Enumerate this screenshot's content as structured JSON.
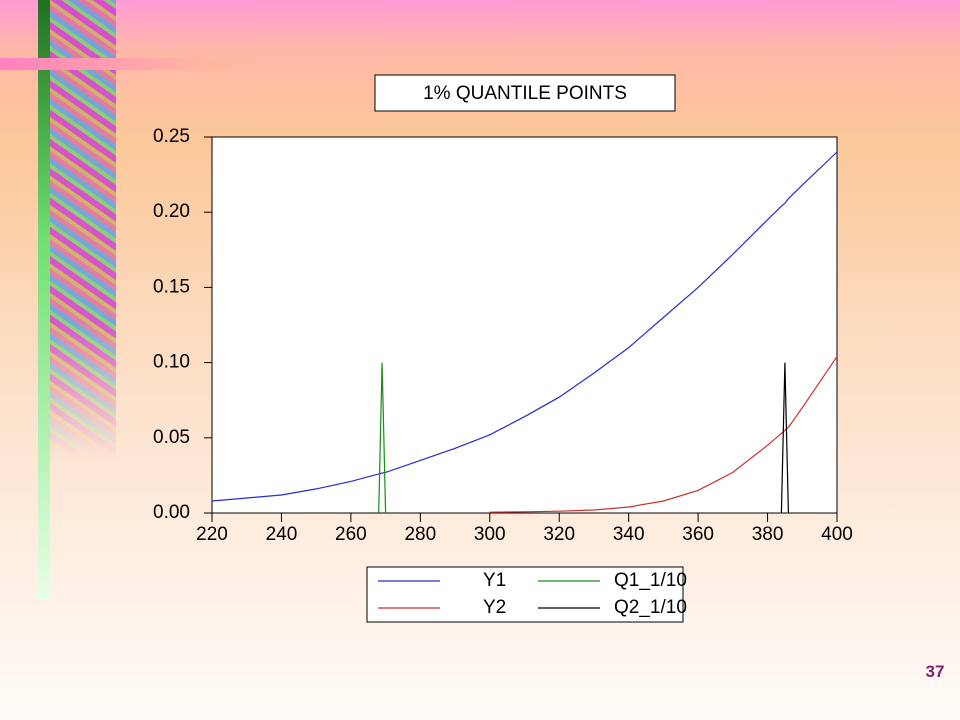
{
  "chart_data": {
    "type": "line",
    "title": "1% QUANTILE POINTS",
    "x": [
      220,
      230,
      240,
      250,
      260,
      268,
      269,
      270,
      280,
      290,
      300,
      310,
      320,
      330,
      340,
      350,
      360,
      370,
      380,
      384,
      385,
      386,
      390,
      400
    ],
    "series": [
      {
        "name": "Y1",
        "color": "#2a2ad0",
        "values": [
          0.008,
          0.01,
          0.012,
          0.016,
          0.021,
          0.026,
          0.0265,
          0.027,
          0.035,
          0.043,
          0.052,
          0.064,
          0.077,
          0.093,
          0.11,
          0.13,
          0.15,
          0.172,
          0.195,
          0.204,
          0.206,
          0.209,
          0.218,
          0.24
        ]
      },
      {
        "name": "Y2",
        "color": "#c83030",
        "values": [
          null,
          null,
          null,
          null,
          null,
          null,
          null,
          null,
          null,
          null,
          0.0005,
          0.0008,
          0.0012,
          0.002,
          0.004,
          0.008,
          0.015,
          0.027,
          0.045,
          0.053,
          0.055,
          0.057,
          0.07,
          0.104
        ]
      },
      {
        "name": "Q1_1/10",
        "color": "#1a8a1a",
        "values": [
          null,
          null,
          null,
          null,
          null,
          0,
          0.1,
          0,
          null,
          null,
          null,
          null,
          null,
          null,
          null,
          null,
          null,
          null,
          null,
          null,
          null,
          null,
          null,
          null
        ]
      },
      {
        "name": "Q2_1/10",
        "color": "#000000",
        "values": [
          null,
          null,
          null,
          null,
          null,
          null,
          null,
          null,
          null,
          null,
          null,
          null,
          null,
          null,
          null,
          null,
          null,
          null,
          null,
          0,
          0.1,
          0,
          null,
          null
        ]
      }
    ],
    "xlim": [
      220,
      400
    ],
    "xticks": [
      220,
      240,
      260,
      280,
      300,
      320,
      340,
      360,
      380,
      400
    ],
    "ylim": [
      0,
      0.25
    ],
    "yticks": [
      {
        "value": 0,
        "label": "0.00"
      },
      0.05,
      {
        "value": 0.1,
        "label": "0.10"
      },
      0.15,
      {
        "value": 0.2,
        "label": "0.20"
      },
      0.25
    ],
    "grid": false
  },
  "page_number": "37"
}
